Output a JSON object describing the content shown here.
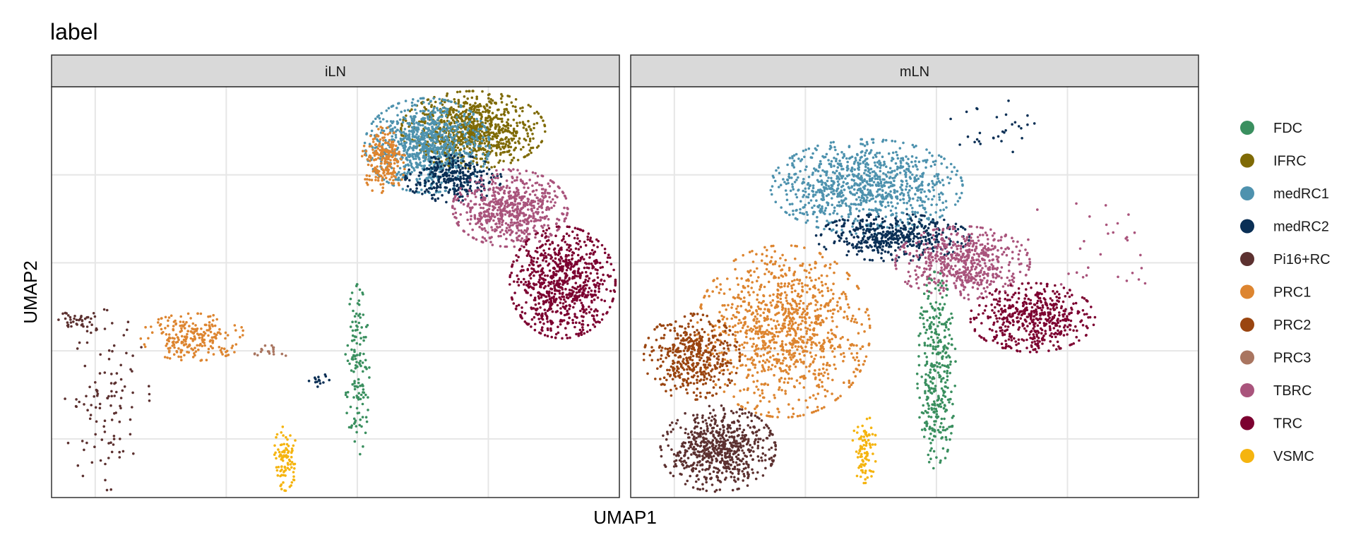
{
  "chart_data": {
    "type": "scatter",
    "title": "label",
    "xlabel": "UMAP1",
    "ylabel": "UMAP2",
    "facets": [
      "iLN",
      "mLN"
    ],
    "xlim": [
      -14,
      12
    ],
    "ylim": [
      -12,
      9
    ],
    "grid": true,
    "legend_position": "right",
    "legend": [
      {
        "name": "FDC",
        "color": "#3A8F5F"
      },
      {
        "name": "IFRC",
        "color": "#7F6A05"
      },
      {
        "name": "medRC1",
        "color": "#4E92AE"
      },
      {
        "name": "medRC2",
        "color": "#0A2F55"
      },
      {
        "name": "Pi16+RC",
        "color": "#5C3130"
      },
      {
        "name": "PRC1",
        "color": "#DD8530"
      },
      {
        "name": "PRC2",
        "color": "#9A4510"
      },
      {
        "name": "PRC3",
        "color": "#A97560"
      },
      {
        "name": "TBRC",
        "color": "#A9547C"
      },
      {
        "name": "TRC",
        "color": "#7C0030"
      },
      {
        "name": "VSMC",
        "color": "#F5B40F"
      }
    ],
    "clusters": {
      "iLN": [
        {
          "label": "IFRC",
          "cx": 5.3,
          "cy": 6.8,
          "sx": 1.5,
          "sy": 0.9,
          "n": 900
        },
        {
          "label": "medRC1",
          "cx": 3.2,
          "cy": 6.0,
          "sx": 1.3,
          "sy": 1.1,
          "n": 900
        },
        {
          "label": "PRC1",
          "cx": 1.2,
          "cy": 5.2,
          "sx": 0.45,
          "sy": 0.8,
          "n": 220
        },
        {
          "label": "medRC2",
          "cx": 4.4,
          "cy": 4.3,
          "sx": 1.0,
          "sy": 0.55,
          "n": 300
        },
        {
          "label": "TBRC",
          "cx": 7.0,
          "cy": 2.8,
          "sx": 1.2,
          "sy": 0.9,
          "n": 650
        },
        {
          "label": "TRC",
          "cx": 9.4,
          "cy": -1.0,
          "sx": 1.1,
          "sy": 1.3,
          "n": 800
        },
        {
          "label": "PRC1",
          "cx": -7.5,
          "cy": -3.8,
          "sx": 1.1,
          "sy": 0.55,
          "n": 230
        },
        {
          "label": "Pi16+RC",
          "cx": -12.7,
          "cy": -3.0,
          "sx": 0.45,
          "sy": 0.3,
          "n": 40
        },
        {
          "label": "Pi16+RC",
          "cx": -11.5,
          "cy": -7.0,
          "sx": 0.9,
          "sy": 2.1,
          "n": 110
        },
        {
          "label": "PRC3",
          "cx": -4.0,
          "cy": -4.5,
          "sx": 0.4,
          "sy": 0.2,
          "n": 18
        },
        {
          "label": "medRC2",
          "cx": -1.8,
          "cy": -6.0,
          "sx": 0.3,
          "sy": 0.15,
          "n": 14
        },
        {
          "label": "FDC",
          "cx": 0.0,
          "cy": -5.5,
          "sx": 0.25,
          "sy": 2.0,
          "n": 140
        },
        {
          "label": "VSMC",
          "cx": -3.3,
          "cy": -10.0,
          "sx": 0.25,
          "sy": 0.75,
          "n": 90
        }
      ],
      "mLN": [
        {
          "label": "medRC1",
          "cx": -3.2,
          "cy": 3.9,
          "sx": 2.0,
          "sy": 1.1,
          "n": 950
        },
        {
          "label": "medRC2",
          "cx": -2.0,
          "cy": 1.3,
          "sx": 1.6,
          "sy": 0.55,
          "n": 450
        },
        {
          "label": "TBRC",
          "cx": 1.2,
          "cy": 0.0,
          "sx": 1.4,
          "sy": 0.85,
          "n": 550
        },
        {
          "label": "TRC",
          "cx": 4.4,
          "cy": -2.8,
          "sx": 1.3,
          "sy": 0.8,
          "n": 500
        },
        {
          "label": "FDC",
          "cx": 0.0,
          "cy": -5.5,
          "sx": 0.4,
          "sy": 2.3,
          "n": 350
        },
        {
          "label": "PRC1",
          "cx": -7.0,
          "cy": -3.5,
          "sx": 1.8,
          "sy": 2.0,
          "n": 1050
        },
        {
          "label": "PRC2",
          "cx": -11.2,
          "cy": -4.8,
          "sx": 1.0,
          "sy": 1.0,
          "n": 450
        },
        {
          "label": "Pi16+RC",
          "cx": -10.0,
          "cy": -9.5,
          "sx": 1.2,
          "sy": 1.0,
          "n": 650
        },
        {
          "label": "VSMC",
          "cx": -3.3,
          "cy": -9.5,
          "sx": 0.25,
          "sy": 0.8,
          "n": 90
        },
        {
          "label": "medRC2",
          "cx": 2.6,
          "cy": 6.8,
          "sx": 1.2,
          "sy": 0.7,
          "n": 30
        },
        {
          "label": "TBRC",
          "cx": 7.5,
          "cy": 1.0,
          "sx": 1.5,
          "sy": 1.6,
          "n": 30
        }
      ]
    }
  }
}
